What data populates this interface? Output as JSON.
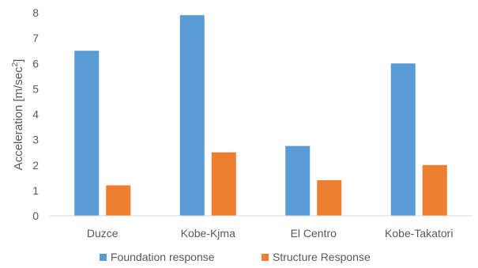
{
  "chart_data": {
    "type": "bar",
    "categories": [
      "Duzce",
      "Kobe-Kjma",
      "El Centro",
      "Kobe-Takatori"
    ],
    "series": [
      {
        "name": "Foundation response",
        "values": [
          6.5,
          7.9,
          2.75,
          6.0
        ],
        "color": "#5B9BD5"
      },
      {
        "name": "Structure Response",
        "values": [
          1.2,
          2.5,
          1.4,
          2.0
        ],
        "color": "#ED7D31"
      }
    ],
    "ylabel_main": "Acceleration [m/sec",
    "ylabel_sup": "2",
    "ylabel_end": "]",
    "ylim": [
      0,
      8
    ],
    "yticks": [
      "0",
      "1",
      "2",
      "3",
      "4",
      "5",
      "6",
      "7",
      "8"
    ],
    "grid": false,
    "legend_position": "bottom"
  }
}
